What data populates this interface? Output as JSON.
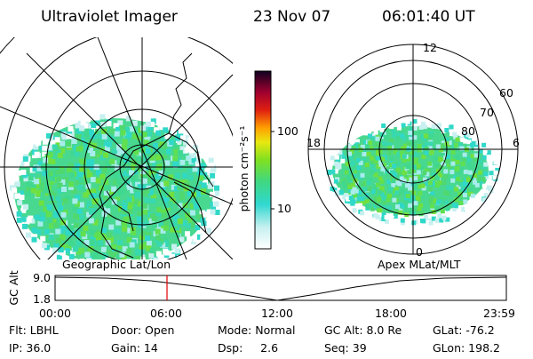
{
  "header": {
    "title": "Ultraviolet Imager",
    "date": "23 Nov 07",
    "time": "06:01:40 UT"
  },
  "colorbar": {
    "label": "photon cm⁻²s⁻¹",
    "ticks": [
      "100",
      "10"
    ]
  },
  "maps": {
    "left": "Geographic Lat/Lon",
    "right": "Apex MLat/MLT"
  },
  "polar": {
    "mlt": [
      "12",
      "18",
      "6",
      "0"
    ],
    "mlat": [
      "60",
      "70",
      "80"
    ]
  },
  "altitude": {
    "label": "GC Alt",
    "yticks": [
      "9.0",
      "1.8"
    ],
    "xticks": [
      "00:00",
      "06:00",
      "12:00",
      "18:00",
      "23:59"
    ]
  },
  "status": [
    [
      "Flt: LBHL",
      "Door: Open",
      "Mode: Normal",
      "GC Alt: 8.0 Re",
      "GLat: -76.2"
    ],
    [
      "IP: 36.0",
      "Gain: 14",
      "Dsp:     2.6",
      "Seq: 39",
      "GLon: 198.2"
    ]
  ]
}
